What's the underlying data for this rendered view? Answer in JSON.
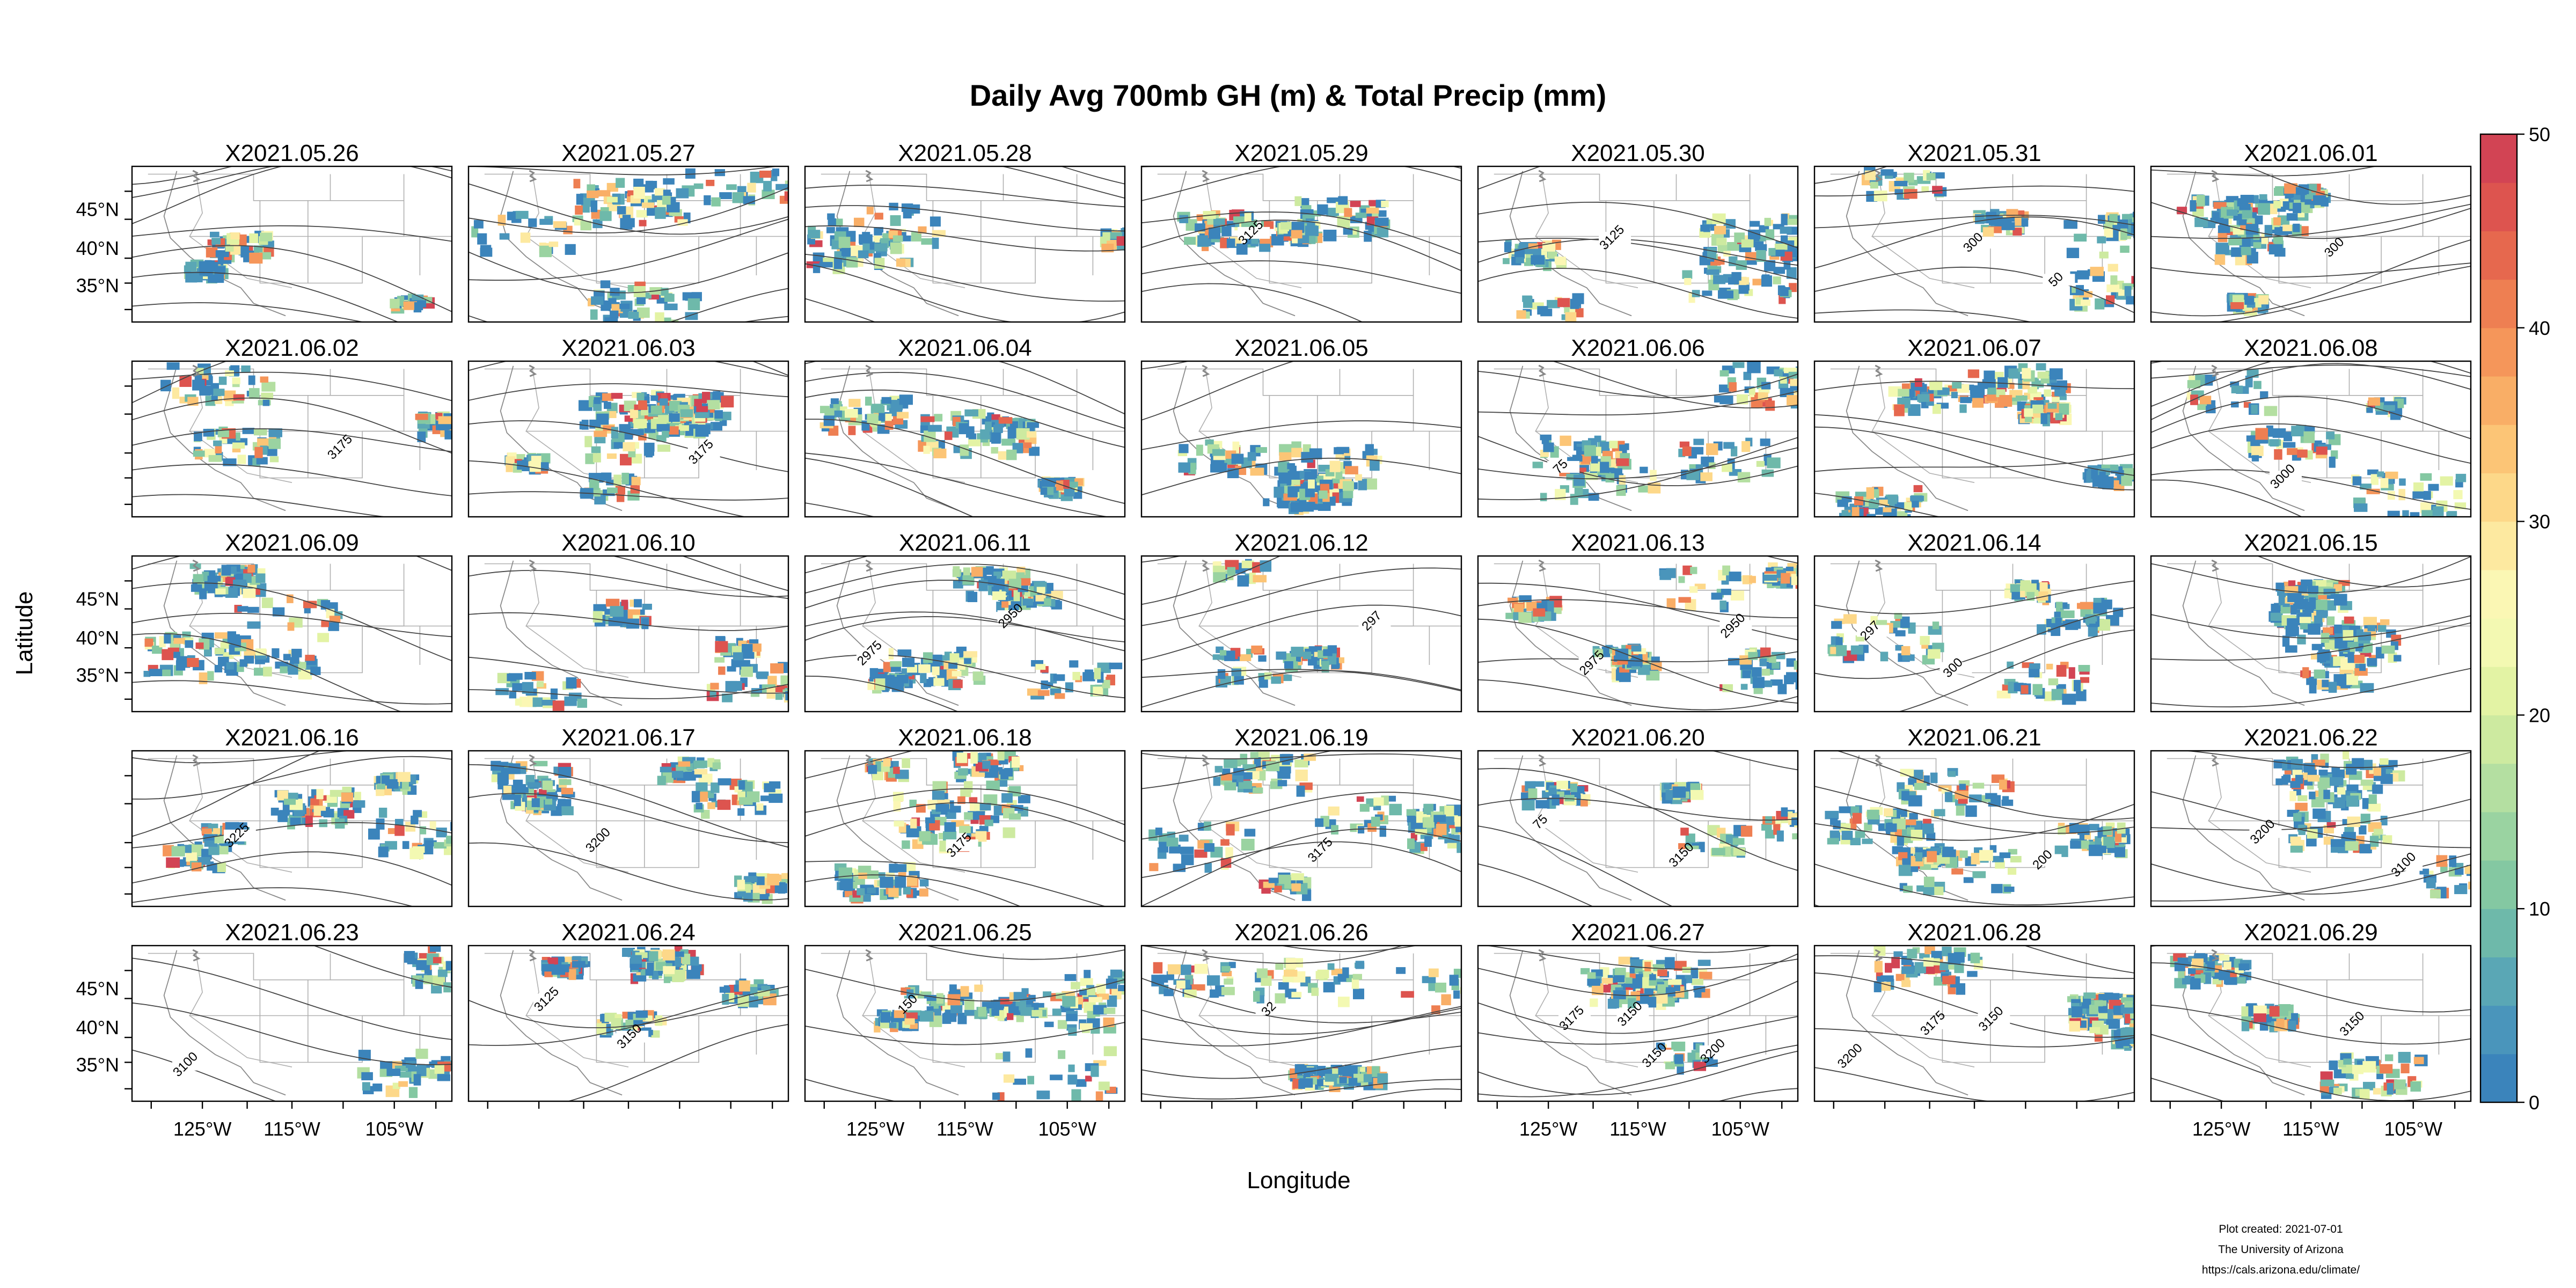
{
  "title": "Daily Avg 700mb GH (m) & Total Precip (mm)",
  "axes": {
    "xlabel": "Longitude",
    "ylabel": "Latitude",
    "lon_ticks": [
      "125°W",
      "115°W",
      "105°W"
    ],
    "lat_ticks": [
      "45°N",
      "40°N",
      "35°N"
    ]
  },
  "colorbar": {
    "ticks": [
      "0",
      "10",
      "20",
      "30",
      "40",
      "50"
    ],
    "min": 0,
    "max": 50,
    "colors": [
      "#3b84bb",
      "#4a95bb",
      "#5aa7b5",
      "#6eb9aa",
      "#84c8a2",
      "#9ad3a1",
      "#b4dfa1",
      "#cdeaa0",
      "#e3f3a4",
      "#f3f9b2",
      "#fbf7b4",
      "#fde9a0",
      "#fdd889",
      "#fcc576",
      "#f9ae66",
      "#f5965a",
      "#ee7f52",
      "#e6684e",
      "#dd544f",
      "#d24454"
    ]
  },
  "panels": [
    {
      "label": "X2021.05.26"
    },
    {
      "label": "X2021.05.27"
    },
    {
      "label": "X2021.05.28"
    },
    {
      "label": "X2021.05.29",
      "contour_labels": [
        "3125"
      ]
    },
    {
      "label": "X2021.05.30",
      "contour_labels": [
        "3125"
      ]
    },
    {
      "label": "X2021.05.31",
      "contour_labels": [
        "300",
        "50"
      ]
    },
    {
      "label": "X2021.06.01",
      "contour_labels": [
        "300"
      ]
    },
    {
      "label": "X2021.06.02",
      "contour_labels": [
        "3175"
      ]
    },
    {
      "label": "X2021.06.03",
      "contour_labels": [
        "3175"
      ]
    },
    {
      "label": "X2021.06.04"
    },
    {
      "label": "X2021.06.05"
    },
    {
      "label": "X2021.06.06",
      "contour_labels": [
        "75"
      ]
    },
    {
      "label": "X2021.06.07"
    },
    {
      "label": "X2021.06.08",
      "contour_labels": [
        "3000"
      ]
    },
    {
      "label": "X2021.06.09"
    },
    {
      "label": "X2021.06.10"
    },
    {
      "label": "X2021.06.11",
      "contour_labels": [
        "2950",
        "2975"
      ]
    },
    {
      "label": "X2021.06.12",
      "contour_labels": [
        "297"
      ]
    },
    {
      "label": "X2021.06.13",
      "contour_labels": [
        "2950",
        "2975"
      ]
    },
    {
      "label": "X2021.06.14",
      "contour_labels": [
        "297",
        "300"
      ]
    },
    {
      "label": "X2021.06.15"
    },
    {
      "label": "X2021.06.16",
      "contour_labels": [
        "3225"
      ]
    },
    {
      "label": "X2021.06.17",
      "contour_labels": [
        "3200"
      ]
    },
    {
      "label": "X2021.06.18",
      "contour_labels": [
        "3175"
      ]
    },
    {
      "label": "X2021.06.19",
      "contour_labels": [
        "3175"
      ]
    },
    {
      "label": "X2021.06.20",
      "contour_labels": [
        "3150",
        "75"
      ]
    },
    {
      "label": "X2021.06.21",
      "contour_labels": [
        "200"
      ]
    },
    {
      "label": "X2021.06.22",
      "contour_labels": [
        "3100",
        "3200"
      ]
    },
    {
      "label": "X2021.06.23",
      "contour_labels": [
        "3100"
      ]
    },
    {
      "label": "X2021.06.24",
      "contour_labels": [
        "3125",
        "3150"
      ]
    },
    {
      "label": "X2021.06.25",
      "contour_labels": [
        "150"
      ]
    },
    {
      "label": "X2021.06.26",
      "contour_labels": [
        "32"
      ]
    },
    {
      "label": "X2021.06.27",
      "contour_labels": [
        "3150",
        "3200",
        "3175",
        "3150"
      ]
    },
    {
      "label": "X2021.06.28",
      "contour_labels": [
        "3150",
        "3200",
        "3175"
      ]
    },
    {
      "label": "X2021.06.29",
      "contour_labels": [
        "3150"
      ]
    }
  ],
  "credit": {
    "line1": "Plot created: 2021-07-01",
    "line2": "The University of Arizona",
    "line3": "https://cals.arizona.edu/climate/"
  }
}
